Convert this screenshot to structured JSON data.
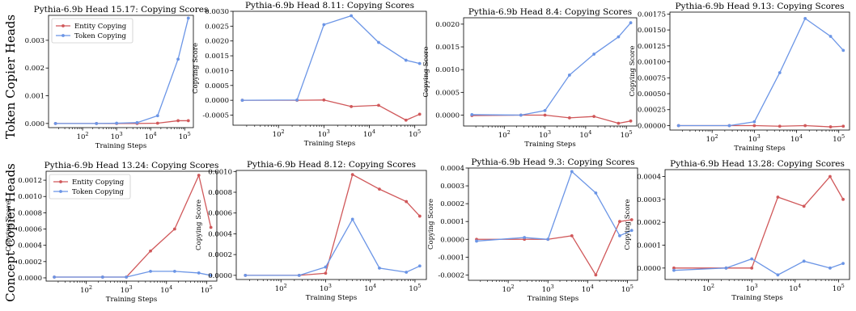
{
  "row_labels": [
    "Token Copier Heads",
    "Concept Copier Heads"
  ],
  "colors": {
    "entity": "#d0585a",
    "token": "#6b95e6"
  },
  "chart_data": [
    {
      "type": "line",
      "title": "Pythia-6.9b Head 15.17: Copying Scores",
      "xlabel": "Training Steps",
      "ylabel": "",
      "xscale": "log",
      "x": [
        16,
        256,
        1000,
        4000,
        16000,
        64000,
        128000
      ],
      "ylim": [
        -0.00015,
        0.0039
      ],
      "yticks": [
        "0.000",
        "0.001",
        "0.002",
        "0.003"
      ],
      "xticks": [
        "10^2",
        "10^3",
        "10^4",
        "10^5"
      ],
      "legend": "upper-left",
      "series": [
        {
          "name": "Entity Copying",
          "color": "#d0585a",
          "values": [
            0.0,
            0.0,
            0.0,
            0.0,
            1e-05,
            0.0001,
            0.0001
          ]
        },
        {
          "name": "Token Copying",
          "color": "#6b95e6",
          "values": [
            0.0,
            0.0,
            1e-05,
            3e-05,
            0.00028,
            0.00232,
            0.0038
          ]
        }
      ]
    },
    {
      "type": "line",
      "title": "Pythia-6.9b Head 8.11: Copying Scores",
      "xlabel": "Training Steps",
      "ylabel": "Copying Score",
      "xscale": "log",
      "x": [
        16,
        256,
        1000,
        4000,
        16000,
        64000,
        128000
      ],
      "ylim": [
        -0.00084,
        0.003
      ],
      "yticks": [
        "-0.0005",
        "0.0000",
        "0.0005",
        "0.0010",
        "0.0015",
        "0.0020",
        "0.0025",
        "0.0030"
      ],
      "xticks": [
        "10^2",
        "10^3",
        "10^4",
        "10^5"
      ],
      "legend": "none",
      "series": [
        {
          "name": "Entity Copying",
          "color": "#d0585a",
          "values": [
            0.0,
            0.0,
            1e-05,
            -0.00021,
            -0.00017,
            -0.00067,
            -0.00047
          ]
        },
        {
          "name": "Token Copying",
          "color": "#6b95e6",
          "values": [
            0.0,
            1e-05,
            0.00255,
            0.00285,
            0.00195,
            0.00135,
            0.00124
          ]
        }
      ]
    },
    {
      "type": "line",
      "title": "Pythia-6.9b Head 8.4: Copying Scores",
      "xlabel": "Training Steps",
      "ylabel": "Copying Score",
      "xscale": "log",
      "x": [
        16,
        256,
        1000,
        4000,
        16000,
        64000,
        128000
      ],
      "ylim": [
        -0.00024,
        0.00214
      ],
      "yticks": [
        "0.0000",
        "0.0005",
        "0.0010",
        "0.0015",
        "0.0020"
      ],
      "xticks": [
        "10^2",
        "10^3",
        "10^4",
        "10^5"
      ],
      "legend": "none",
      "series": [
        {
          "name": "Entity Copying",
          "color": "#d0585a",
          "values": [
            -1e-05,
            0.0,
            0.0,
            -6e-05,
            -3e-05,
            -0.00018,
            -0.00013
          ]
        },
        {
          "name": "Token Copying",
          "color": "#6b95e6",
          "values": [
            1e-05,
            0.0,
            0.0001,
            0.00088,
            0.00134,
            0.00172,
            0.00203
          ]
        }
      ]
    },
    {
      "type": "line",
      "title": "Pythia-6.9b Head 9.13: Copying Scores",
      "xlabel": "Training Steps",
      "ylabel": "Copying Score",
      "xscale": "log",
      "x": [
        16,
        256,
        1000,
        4000,
        16000,
        64000,
        128000
      ],
      "ylim": [
        -7e-05,
        0.00178
      ],
      "yticks": [
        "0.00000",
        "0.00025",
        "0.00050",
        "0.00075",
        "0.00100",
        "0.00125",
        "0.00150",
        "0.00175"
      ],
      "xticks": [
        "10^2",
        "10^3",
        "10^4",
        "10^5"
      ],
      "legend": "none",
      "series": [
        {
          "name": "Entity Copying",
          "color": "#d0585a",
          "values": [
            0.0,
            0.0,
            0.0,
            -1e-05,
            0.0,
            -2e-05,
            -1e-05
          ]
        },
        {
          "name": "Token Copying",
          "color": "#6b95e6",
          "values": [
            0.0,
            0.0,
            6e-05,
            0.00083,
            0.00168,
            0.0014,
            0.00118
          ]
        }
      ]
    },
    {
      "type": "line",
      "title": "Pythia-6.9b Head 13.24: Copying Scores",
      "xlabel": "Training Steps",
      "ylabel": "Copying Score",
      "xscale": "log",
      "x": [
        16,
        256,
        1000,
        4000,
        16000,
        64000,
        128000
      ],
      "ylim": [
        -4e-05,
        0.00131
      ],
      "yticks": [
        "0.0000",
        "0.0002",
        "0.0004",
        "0.0006",
        "0.0008",
        "0.0010",
        "0.0012"
      ],
      "xticks": [
        "10^2",
        "10^3",
        "10^4",
        "10^5"
      ],
      "legend": "upper-left",
      "series": [
        {
          "name": "Entity Copying",
          "color": "#d0585a",
          "values": [
            1e-05,
            1e-05,
            1e-05,
            0.00033,
            0.0006,
            0.00126,
            0.00062
          ]
        },
        {
          "name": "Token Copying",
          "color": "#6b95e6",
          "values": [
            1e-05,
            1e-05,
            1e-05,
            8e-05,
            8e-05,
            6e-05,
            3e-05
          ]
        }
      ]
    },
    {
      "type": "line",
      "title": "Pythia-6.9b Head 8.12: Copying Scores",
      "xlabel": "Training Steps",
      "ylabel": "Copying Score",
      "xscale": "log",
      "x": [
        16,
        256,
        1000,
        4000,
        16000,
        64000,
        128000
      ],
      "ylim": [
        -4e-05,
        0.00101
      ],
      "yticks": [
        "0.0000",
        "0.0002",
        "0.0004",
        "0.0006",
        "0.0008",
        "0.0010"
      ],
      "xticks": [
        "10^2",
        "10^3",
        "10^4",
        "10^5"
      ],
      "legend": "none",
      "series": [
        {
          "name": "Entity Copying",
          "color": "#d0585a",
          "values": [
            0.0,
            0.0,
            2e-05,
            0.00097,
            0.00083,
            0.00071,
            0.00057
          ]
        },
        {
          "name": "Token Copying",
          "color": "#6b95e6",
          "values": [
            0.0,
            0.0,
            8e-05,
            0.00054,
            7e-05,
            3e-05,
            9e-05
          ]
        }
      ]
    },
    {
      "type": "line",
      "title": "Pythia-6.9b Head 9.3: Copying Scores",
      "xlabel": "Training Steps",
      "ylabel": "Copying Score",
      "xscale": "log",
      "x": [
        16,
        256,
        1000,
        4000,
        16000,
        64000,
        128000
      ],
      "ylim": [
        -0.00023,
        0.0004
      ],
      "yticks": [
        "-0.0002",
        "-0.0001",
        "0.0000",
        "0.0001",
        "0.0002",
        "0.0003",
        "0.0004"
      ],
      "xticks": [
        "10^2",
        "10^3",
        "10^4",
        "10^5"
      ],
      "legend": "none",
      "series": [
        {
          "name": "Entity Copying",
          "color": "#d0585a",
          "values": [
            0.0,
            0.0,
            0.0,
            2e-05,
            -0.0002,
            0.0001,
            0.00011
          ]
        },
        {
          "name": "Token Copying",
          "color": "#6b95e6",
          "values": [
            -1e-05,
            1e-05,
            0.0,
            0.00038,
            0.00026,
            2e-05,
            5e-05
          ]
        }
      ]
    },
    {
      "type": "line",
      "title": "Pythia-6.9b Head 13.28: Copying Scores",
      "xlabel": "Training Steps",
      "ylabel": "Copying Score",
      "xscale": "log",
      "x": [
        16,
        256,
        1000,
        4000,
        16000,
        64000,
        128000
      ],
      "ylim": [
        -5e-05,
        0.00043
      ],
      "yticks": [
        "0.0000",
        "0.0001",
        "0.0002",
        "0.0003",
        "0.0004"
      ],
      "xticks": [
        "10^2",
        "10^3",
        "10^4",
        "10^5"
      ],
      "legend": "none",
      "series": [
        {
          "name": "Entity Copying",
          "color": "#d0585a",
          "values": [
            0.0,
            0.0,
            0.0,
            0.00031,
            0.00027,
            0.0004,
            0.0003
          ]
        },
        {
          "name": "Token Copying",
          "color": "#6b95e6",
          "values": [
            -1e-05,
            0.0,
            4e-05,
            -3e-05,
            3e-05,
            0.0,
            2e-05
          ]
        }
      ]
    }
  ]
}
